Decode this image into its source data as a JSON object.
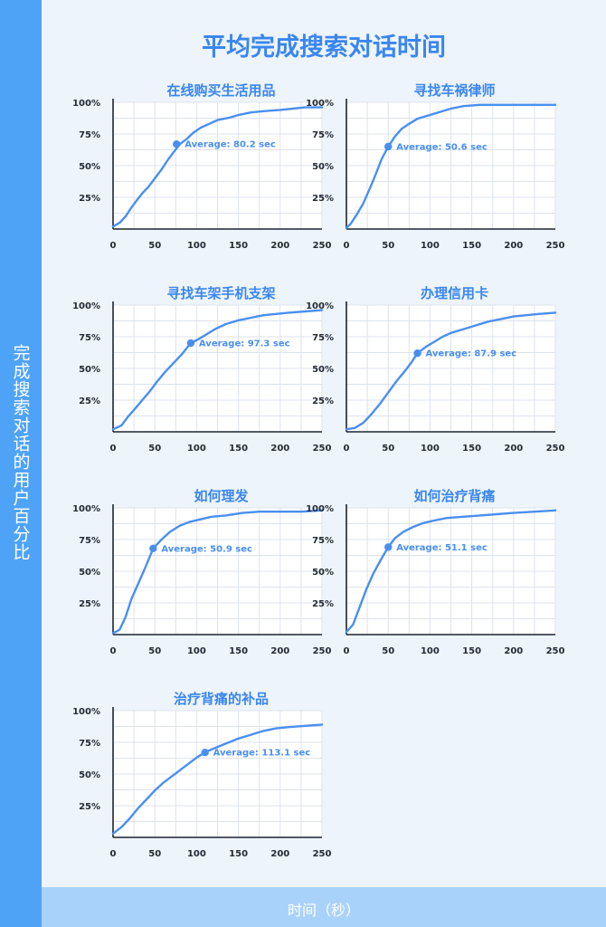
{
  "page": {
    "title": "平均完成搜索对话时间",
    "ylabel": "完成搜索对话的用户百分比",
    "xlabel": "时间（秒）",
    "colors": {
      "accent": "#4a8ff0",
      "title": "#3a86ef",
      "grid": "#dde3ec",
      "band": "#4fa3f7",
      "footer": "#a9d2fb"
    }
  },
  "chart_data": [
    {
      "type": "line",
      "title": "在线购买生活用品",
      "xlim": [
        0,
        250
      ],
      "ylim": [
        0,
        100
      ],
      "xticks": [
        "0",
        "50",
        "100",
        "150",
        "200",
        "250"
      ],
      "yticks": [
        "25%",
        "50%",
        "75%",
        "100%"
      ],
      "annotation": "Average: 80.2 sec",
      "average": {
        "x": 76,
        "y": 67
      },
      "series": [
        {
          "x": [
            0,
            8,
            15,
            22,
            30,
            36,
            42,
            50,
            58,
            66,
            74,
            80,
            88,
            96,
            105,
            115,
            125,
            140,
            150,
            165,
            180,
            200,
            215,
            230,
            250
          ],
          "y": [
            2,
            5,
            10,
            17,
            24,
            29,
            33,
            40,
            47,
            55,
            62,
            67,
            71,
            76,
            80,
            83,
            86,
            88,
            90,
            92,
            93,
            94,
            95,
            96,
            96
          ]
        }
      ]
    },
    {
      "type": "line",
      "title": "寻找车祸律师",
      "xlim": [
        0,
        250
      ],
      "ylim": [
        0,
        100
      ],
      "xticks": [
        "0",
        "50",
        "100",
        "150",
        "200",
        "250"
      ],
      "yticks": [
        "25%",
        "50%",
        "75%",
        "100%"
      ],
      "annotation": "Average: 50.6 sec",
      "average": {
        "x": 50,
        "y": 65
      },
      "series": [
        {
          "x": [
            0,
            5,
            12,
            20,
            28,
            35,
            42,
            50,
            58,
            66,
            75,
            85,
            95,
            110,
            125,
            140,
            160,
            190,
            220,
            250
          ],
          "y": [
            1,
            4,
            11,
            20,
            32,
            43,
            55,
            65,
            73,
            79,
            83,
            87,
            89,
            92,
            95,
            97,
            98,
            98,
            98,
            98
          ]
        }
      ]
    },
    {
      "type": "line",
      "title": "寻找车架手机支架",
      "xlim": [
        0,
        250
      ],
      "ylim": [
        0,
        100
      ],
      "xticks": [
        "0",
        "50",
        "100",
        "150",
        "200",
        "250"
      ],
      "yticks": [
        "25%",
        "50%",
        "75%",
        "100%"
      ],
      "annotation": "Average: 97.3 sec",
      "average": {
        "x": 93,
        "y": 70
      },
      "series": [
        {
          "x": [
            0,
            10,
            18,
            26,
            35,
            44,
            52,
            62,
            72,
            82,
            93,
            102,
            112,
            122,
            135,
            150,
            165,
            180,
            195,
            210,
            230,
            250
          ],
          "y": [
            2,
            5,
            12,
            18,
            25,
            32,
            39,
            47,
            54,
            61,
            70,
            73,
            77,
            81,
            85,
            88,
            90,
            92,
            93,
            94,
            95,
            96
          ]
        }
      ]
    },
    {
      "type": "line",
      "title": "办理信用卡",
      "xlim": [
        0,
        250
      ],
      "ylim": [
        0,
        100
      ],
      "xticks": [
        "0",
        "50",
        "100",
        "150",
        "200",
        "250"
      ],
      "yticks": [
        "25%",
        "50%",
        "75%",
        "100%"
      ],
      "annotation": "Average: 87.9 sec",
      "average": {
        "x": 85,
        "y": 62
      },
      "series": [
        {
          "x": [
            0,
            10,
            20,
            30,
            40,
            50,
            60,
            70,
            78,
            85,
            95,
            105,
            115,
            125,
            140,
            155,
            170,
            185,
            200,
            215,
            230,
            250
          ],
          "y": [
            2,
            3,
            7,
            14,
            22,
            31,
            40,
            48,
            55,
            62,
            67,
            71,
            75,
            78,
            81,
            84,
            87,
            89,
            91,
            92,
            93,
            94
          ]
        }
      ]
    },
    {
      "type": "line",
      "title": "如何理发",
      "xlim": [
        0,
        250
      ],
      "ylim": [
        0,
        100
      ],
      "xticks": [
        "0",
        "50",
        "100",
        "150",
        "200",
        "250"
      ],
      "yticks": [
        "25%",
        "50%",
        "75%",
        "100%"
      ],
      "annotation": "Average: 50.9 sec",
      "average": {
        "x": 48,
        "y": 68
      },
      "series": [
        {
          "x": [
            0,
            8,
            15,
            22,
            30,
            38,
            48,
            58,
            68,
            80,
            92,
            105,
            118,
            135,
            155,
            175,
            200,
            225,
            250
          ],
          "y": [
            1,
            4,
            14,
            28,
            40,
            52,
            68,
            75,
            81,
            86,
            89,
            91,
            93,
            94,
            96,
            97,
            97,
            97,
            98
          ]
        }
      ]
    },
    {
      "type": "line",
      "title": "如何治疗背痛",
      "xlim": [
        0,
        250
      ],
      "ylim": [
        0,
        100
      ],
      "xticks": [
        "0",
        "50",
        "100",
        "150",
        "200",
        "250"
      ],
      "yticks": [
        "25%",
        "50%",
        "75%",
        "100%"
      ],
      "annotation": "Average: 51.1 sec",
      "average": {
        "x": 50,
        "y": 69
      },
      "series": [
        {
          "x": [
            0,
            8,
            16,
            24,
            32,
            42,
            50,
            58,
            68,
            80,
            92,
            105,
            120,
            140,
            160,
            180,
            200,
            225,
            250
          ],
          "y": [
            2,
            8,
            22,
            36,
            48,
            60,
            69,
            76,
            81,
            85,
            88,
            90,
            92,
            93,
            94,
            95,
            96,
            97,
            98
          ]
        }
      ]
    },
    {
      "type": "line",
      "title": "治疗背痛的补品",
      "xlim": [
        0,
        250
      ],
      "ylim": [
        0,
        100
      ],
      "xticks": [
        "0",
        "50",
        "100",
        "150",
        "200",
        "250"
      ],
      "yticks": [
        "25%",
        "50%",
        "75%",
        "100%"
      ],
      "annotation": "Average: 113.1 sec",
      "average": {
        "x": 110,
        "y": 67
      },
      "series": [
        {
          "x": [
            0,
            10,
            20,
            30,
            40,
            50,
            60,
            70,
            80,
            90,
            100,
            110,
            120,
            135,
            150,
            165,
            180,
            195,
            210,
            230,
            250
          ],
          "y": [
            3,
            8,
            15,
            23,
            30,
            37,
            43,
            48,
            53,
            58,
            63,
            67,
            70,
            74,
            78,
            81,
            84,
            86,
            87,
            88,
            89
          ]
        }
      ]
    }
  ]
}
